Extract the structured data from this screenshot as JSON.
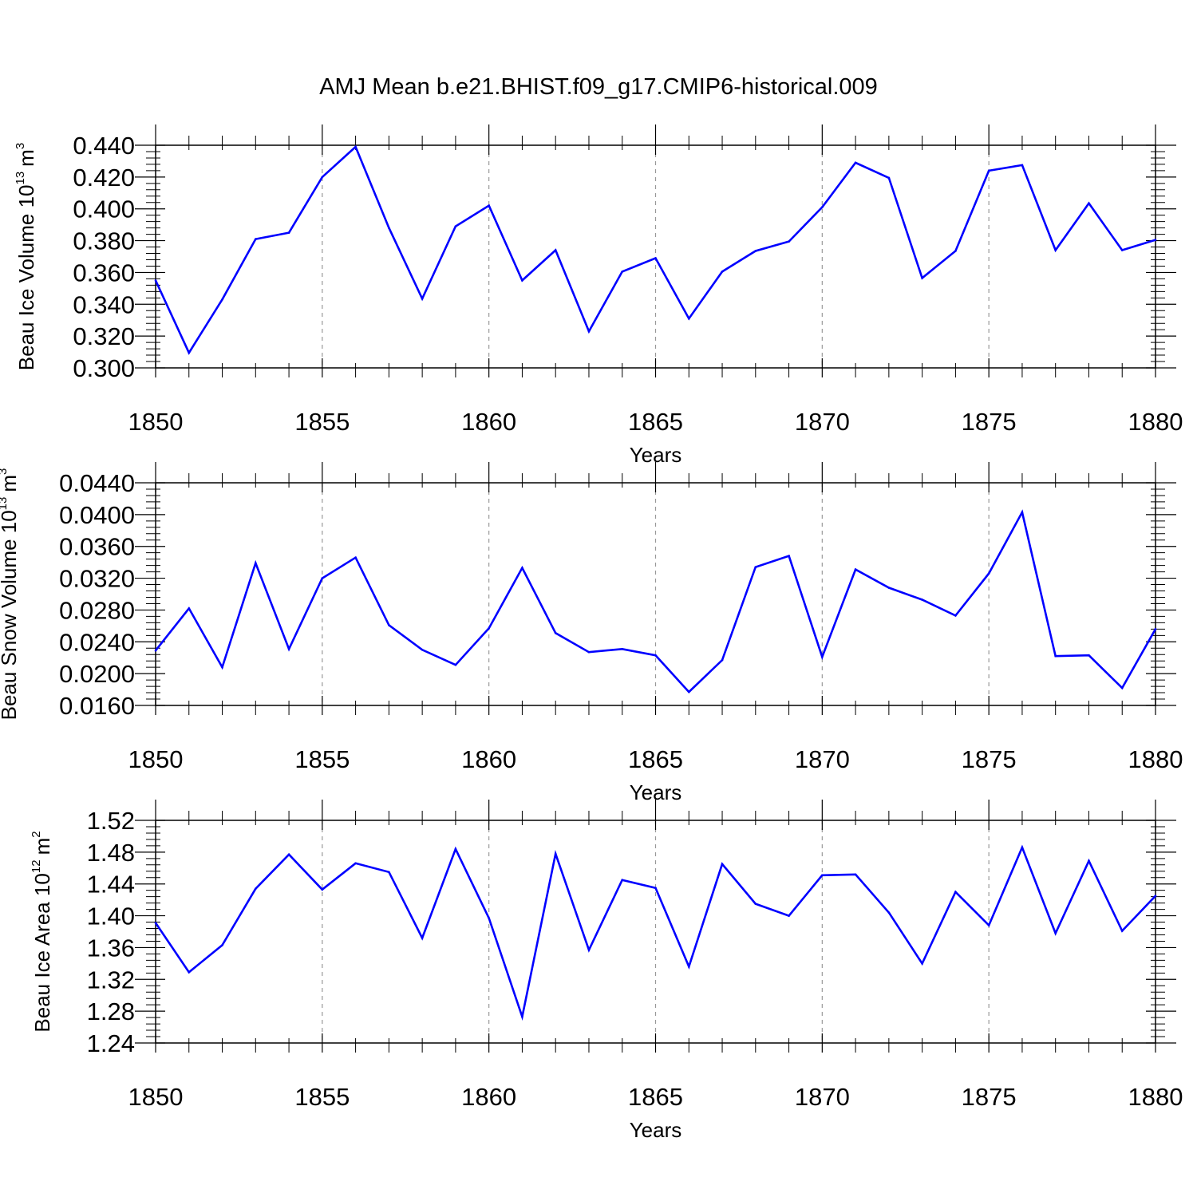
{
  "figure": {
    "title": "AMJ Mean b.e21.BHIST.f09_g17.CMIP6-historical.009",
    "line_color": "#0000ff"
  },
  "chart_data": [
    {
      "type": "line",
      "id": "ice-volume",
      "ylabel": {
        "text": "Beau Ice Volume 10",
        "exp": "13",
        "unit": "m",
        "unit_exp": "3"
      },
      "xlabel": "Years",
      "xlim": [
        1850,
        1880
      ],
      "ylim": [
        0.3,
        0.44
      ],
      "x_ticks": [
        "1850",
        "1855",
        "1860",
        "1865",
        "1870",
        "1875",
        "1880"
      ],
      "y_ticks": [
        "0.300",
        "0.320",
        "0.340",
        "0.360",
        "0.380",
        "0.400",
        "0.420",
        "0.440"
      ],
      "x": [
        1850,
        1851,
        1852,
        1853,
        1854,
        1855,
        1856,
        1857,
        1858,
        1859,
        1860,
        1861,
        1862,
        1863,
        1864,
        1865,
        1866,
        1867,
        1868,
        1869,
        1870,
        1871,
        1872,
        1873,
        1874,
        1875,
        1876,
        1877,
        1878,
        1879,
        1880
      ],
      "values": [
        0.355,
        0.3095,
        0.343,
        0.381,
        0.385,
        0.42,
        0.439,
        0.388,
        0.3435,
        0.389,
        0.402,
        0.355,
        0.374,
        0.323,
        0.3605,
        0.369,
        0.331,
        0.3605,
        0.3735,
        0.3795,
        0.401,
        0.429,
        0.4195,
        0.3565,
        0.3735,
        0.424,
        0.4275,
        0.374,
        0.4035,
        0.374,
        0.3805
      ]
    },
    {
      "type": "line",
      "id": "snow-volume",
      "ylabel": {
        "text": "Beau Snow Volume 10",
        "exp": "13",
        "unit": "m",
        "unit_exp": "3"
      },
      "xlabel": "Years",
      "xlim": [
        1850,
        1880
      ],
      "ylim": [
        0.016,
        0.044
      ],
      "x_ticks": [
        "1850",
        "1855",
        "1860",
        "1865",
        "1870",
        "1875",
        "1880"
      ],
      "y_ticks": [
        "0.0160",
        "0.0200",
        "0.0240",
        "0.0280",
        "0.0320",
        "0.0360",
        "0.0400",
        "0.0440"
      ],
      "x": [
        1850,
        1851,
        1852,
        1853,
        1854,
        1855,
        1856,
        1857,
        1858,
        1859,
        1860,
        1861,
        1862,
        1863,
        1864,
        1865,
        1866,
        1867,
        1868,
        1869,
        1870,
        1871,
        1872,
        1873,
        1874,
        1875,
        1876,
        1877,
        1878,
        1879,
        1880
      ],
      "values": [
        0.0229,
        0.0282,
        0.0208,
        0.0339,
        0.0231,
        0.032,
        0.0346,
        0.0261,
        0.023,
        0.0211,
        0.0257,
        0.0333,
        0.0251,
        0.0227,
        0.0231,
        0.0223,
        0.0177,
        0.0217,
        0.0334,
        0.0348,
        0.0221,
        0.0331,
        0.0308,
        0.0293,
        0.0273,
        0.0326,
        0.0403,
        0.0222,
        0.0223,
        0.0182,
        0.0256
      ]
    },
    {
      "type": "line",
      "id": "ice-area",
      "ylabel": {
        "text": "Beau Ice Area 10",
        "exp": "12",
        "unit": "m",
        "unit_exp": "2"
      },
      "xlabel": "Years",
      "xlim": [
        1850,
        1880
      ],
      "ylim": [
        1.24,
        1.52
      ],
      "x_ticks": [
        "1850",
        "1855",
        "1860",
        "1865",
        "1870",
        "1875",
        "1880"
      ],
      "y_ticks": [
        "1.24",
        "1.28",
        "1.32",
        "1.36",
        "1.40",
        "1.44",
        "1.48",
        "1.52"
      ],
      "x": [
        1850,
        1851,
        1852,
        1853,
        1854,
        1855,
        1856,
        1857,
        1858,
        1859,
        1860,
        1861,
        1862,
        1863,
        1864,
        1865,
        1866,
        1867,
        1868,
        1869,
        1870,
        1871,
        1872,
        1873,
        1874,
        1875,
        1876,
        1877,
        1878,
        1879,
        1880
      ],
      "values": [
        1.391,
        1.329,
        1.363,
        1.434,
        1.477,
        1.433,
        1.466,
        1.455,
        1.372,
        1.484,
        1.397,
        1.273,
        1.478,
        1.357,
        1.445,
        1.435,
        1.336,
        1.465,
        1.415,
        1.4,
        1.451,
        1.452,
        1.404,
        1.34,
        1.43,
        1.388,
        1.486,
        1.378,
        1.469,
        1.381,
        1.425
      ]
    }
  ]
}
